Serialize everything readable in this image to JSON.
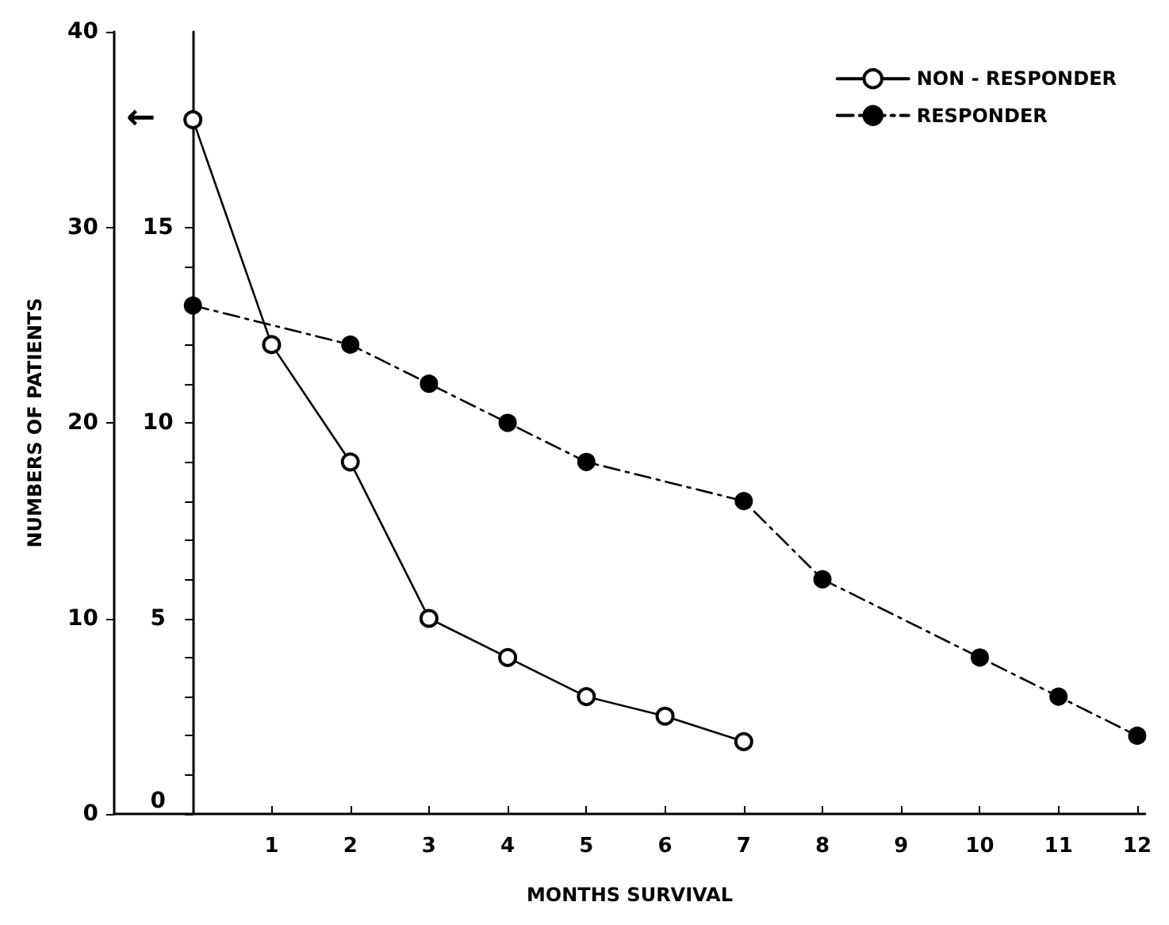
{
  "chart_data": {
    "type": "line",
    "xlabel": "MONTHS SURVIVAL",
    "ylabel": "NUMBERS OF PATIENTS",
    "xlim": [
      -1,
      12.1
    ],
    "xticks": [
      1,
      2,
      3,
      4,
      5,
      6,
      7,
      8,
      9,
      10,
      11,
      12
    ],
    "ylim": [
      0,
      40
    ],
    "yticks": [
      0,
      10,
      20,
      30,
      40
    ],
    "y2lim": [
      0,
      20
    ],
    "y2ticks": [
      0,
      {
        "value": 1,
        "label": null
      },
      {
        "value": 2,
        "label": null
      },
      {
        "value": 3,
        "label": null
      },
      {
        "value": 4,
        "label": null
      },
      5,
      {
        "value": 6,
        "label": null
      },
      {
        "value": 7,
        "label": null
      },
      {
        "value": 8,
        "label": null
      },
      {
        "value": 9,
        "label": null
      },
      10,
      {
        "value": 11,
        "label": null
      },
      {
        "value": 12,
        "label": null
      },
      {
        "value": 13,
        "label": null
      },
      {
        "value": 14,
        "label": null
      },
      15
    ],
    "series": [
      {
        "name": "NON - RESPONDER",
        "color": "#000000",
        "line_style": "solid",
        "x": [
          0,
          1,
          2,
          3,
          4,
          5,
          6,
          7
        ],
        "values": [
          35.5,
          24,
          18,
          10,
          8,
          6,
          5,
          3.7
        ]
      },
      {
        "name": "RESPONDER",
        "color": "#000000",
        "line_style": "dashed",
        "axis": "y2",
        "x": [
          0,
          2,
          3,
          4,
          5,
          7,
          8,
          10,
          11,
          12
        ],
        "values": [
          13,
          12,
          11,
          10,
          9,
          8,
          6,
          4,
          3,
          2
        ]
      }
    ],
    "annotations": [
      {
        "text": "←",
        "x": 0,
        "y": 35.5
      }
    ],
    "marker": "circle",
    "grid": false,
    "legend": "top right"
  }
}
